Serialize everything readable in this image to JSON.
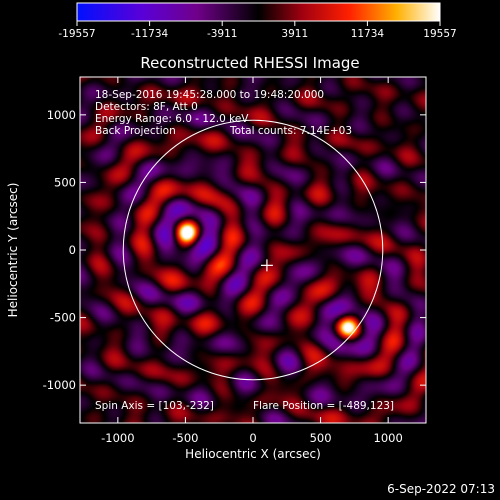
{
  "chart_data": {
    "type": "heatmap",
    "title": "Reconstructed RHESSI Image",
    "xlabel": "Heliocentric X (arcsec)",
    "ylabel": "Heliocentric Y (arcsec)",
    "xlim": [
      -1280,
      1280
    ],
    "ylim": [
      -1280,
      1280
    ],
    "x_ticks": [
      -1000,
      -500,
      0,
      500,
      1000
    ],
    "y_ticks": [
      -1000,
      -500,
      0,
      500,
      1000
    ],
    "colorbar": {
      "min": -19557,
      "max": 19557,
      "tick_values": [
        -19557,
        -11734,
        -3911,
        3911,
        11734,
        19557
      ],
      "tick_labels": [
        "-19557",
        "-11734",
        "-3911",
        "3911",
        "11734",
        "19557"
      ]
    },
    "annotations": {
      "time_range": "18-Sep-2016 19:45:28.000 to 19:48:20.000",
      "detectors": "Detectors: 8F, Att 0",
      "energy_range": "Energy Range: 6.0 - 12.0 keV",
      "method": "Back Projection",
      "total_counts": "Total counts: 7.14E+03",
      "spin_axis": "Spin Axis = [103,-232]",
      "flare_position": "Flare Position = [-489,123]"
    },
    "sources": [
      {
        "x": -489,
        "y": 123,
        "peak": 19557
      },
      {
        "x": 700,
        "y": -570,
        "peak": 17000
      }
    ],
    "spin_axis": [
      103,
      -232
    ],
    "solar_disk_radius": 960
  },
  "timestamp": "6-Sep-2022 07:13"
}
